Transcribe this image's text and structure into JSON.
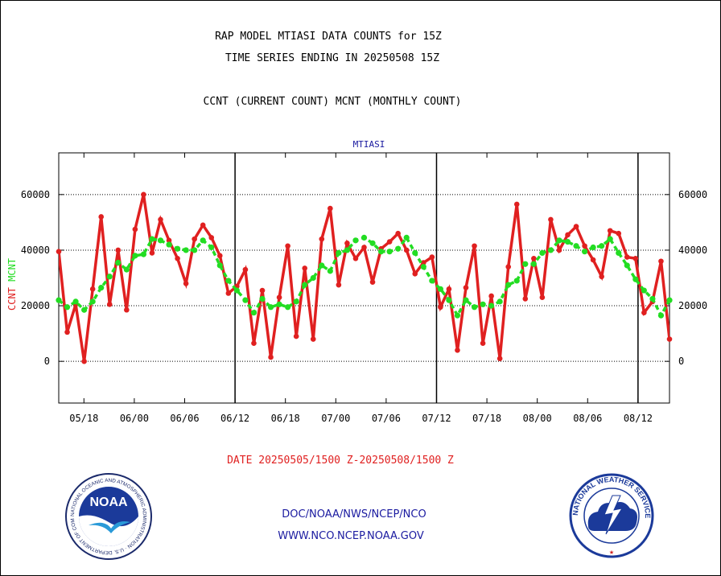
{
  "header": {
    "title_line1": "RAP MODEL MTIASI DATA COUNTS for 15Z",
    "title_line2": "TIME SERIES ENDING IN 20250508 15Z",
    "subtitle": "CCNT (CURRENT COUNT) MCNT (MONTHLY COUNT)"
  },
  "footer": {
    "date_range": "DATE 20250505/1500 Z-20250508/1500 Z",
    "org_line": "DOC/NOAA/NWS/NCEP/NCO",
    "url_line": "WWW.NCO.NCEP.NOAA.GOV",
    "noaa_logo_text": "NOAA",
    "noaa_ring_text": "NATIONAL OCEANIC AND ATMOSPHERIC ADMINISTRATION · U.S. DEPARTMENT OF COMMERCE ·",
    "nws_ring_text": "NATIONAL WEATHER SERVICE"
  },
  "colors": {
    "ccnt": "#e02020",
    "mcnt": "#22dd22",
    "title_blue": "#1a1aa0",
    "date_red": "#e02020",
    "grid": "#000000"
  },
  "chart_data": {
    "type": "line",
    "title": "MTIASI",
    "ylabel_left": [
      "CCNT",
      "MCNT"
    ],
    "ylim": [
      -15000,
      75000
    ],
    "yticks": [
      0,
      20000,
      40000,
      60000
    ],
    "ytick_labels": [
      "0",
      "20000",
      "40000",
      "60000"
    ],
    "xlim": [
      0,
      97
    ],
    "xticks": [
      4,
      12,
      20,
      28,
      36,
      44,
      52,
      60,
      68,
      76,
      84,
      92
    ],
    "xtick_labels": [
      "05/18",
      "06/00",
      "06/06",
      "06/12",
      "06/18",
      "07/00",
      "07/06",
      "07/12",
      "07/18",
      "08/00",
      "08/06",
      "08/12"
    ],
    "day_separators": [
      28,
      60,
      92
    ],
    "series": [
      {
        "name": "CCNT",
        "values": [
          39500,
          10500,
          20500,
          0,
          26000,
          52000,
          20500,
          40000,
          18500,
          47500,
          60000,
          39000,
          51000,
          43500,
          37000,
          28000,
          44000,
          49000,
          44500,
          38000,
          24500,
          27000,
          33000,
          6500,
          25500,
          1500,
          23000,
          41500,
          9000,
          33500,
          8000,
          44000,
          55000,
          27500,
          42500,
          37000,
          41000,
          28500,
          40500,
          43000,
          46000,
          40000,
          31500,
          35500,
          37500,
          19500,
          26000,
          4000,
          26500,
          41500,
          6500,
          23500,
          1000,
          34000,
          56500,
          22500,
          37000,
          23000,
          51000,
          40000,
          45500,
          48500,
          41500,
          36500,
          30500,
          47000,
          46000,
          37500,
          37000,
          17500,
          21500,
          36000,
          8000
        ]
      },
      {
        "name": "MCNT",
        "values": [
          22000,
          19500,
          21500,
          18500,
          21500,
          26500,
          30500,
          35500,
          33000,
          38000,
          38500,
          44000,
          43500,
          42000,
          40500,
          40000,
          40000,
          43500,
          41000,
          34500,
          29000,
          25500,
          22000,
          17500,
          22500,
          19500,
          20500,
          19500,
          21500,
          27500,
          30000,
          34500,
          32500,
          39000,
          40000,
          43500,
          44500,
          42500,
          39500,
          39500,
          40500,
          44500,
          39000,
          34000,
          29000,
          26000,
          22000,
          16500,
          22000,
          19500,
          20500,
          20000,
          21500,
          27500,
          29000,
          35000,
          35000,
          39000,
          40000,
          43500,
          43000,
          41500,
          39500,
          41000,
          41500,
          44000,
          39000,
          34500,
          29500,
          25500,
          22500,
          16500,
          22000
        ]
      }
    ]
  }
}
